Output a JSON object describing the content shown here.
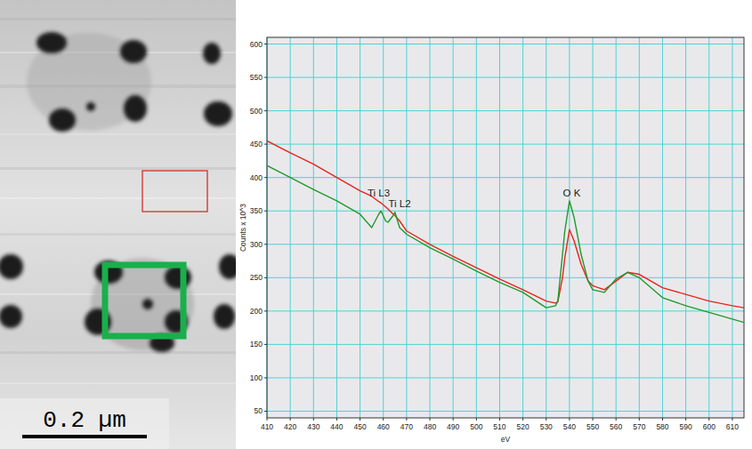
{
  "chart_data": {
    "type": "line",
    "x_label": "eV",
    "y_label": "Counts x 10^3",
    "x": [
      410,
      420,
      430,
      440,
      450,
      455,
      458,
      459,
      461,
      462,
      464,
      465,
      467,
      470,
      480,
      490,
      500,
      510,
      520,
      530,
      534,
      535,
      537,
      538,
      540,
      542,
      545,
      548,
      550,
      555,
      560,
      565,
      570,
      575,
      580,
      590,
      600,
      610,
      615
    ],
    "series": [
      {
        "color": "#e8231c",
        "values": [
          455,
          437,
          420,
          400,
          380,
          372,
          364,
          362,
          356,
          353,
          346,
          343,
          335,
          320,
          300,
          282,
          265,
          248,
          232,
          215,
          212,
          214,
          250,
          280,
          322,
          305,
          270,
          245,
          238,
          232,
          245,
          258,
          255,
          245,
          235,
          225,
          215,
          208,
          205
        ]
      },
      {
        "color": "#1f9a2a",
        "values": [
          418,
          400,
          382,
          365,
          345,
          325,
          345,
          350,
          335,
          333,
          342,
          348,
          325,
          315,
          295,
          278,
          260,
          243,
          228,
          205,
          208,
          215,
          285,
          320,
          365,
          340,
          285,
          245,
          232,
          228,
          248,
          258,
          250,
          235,
          220,
          208,
          198,
          188,
          183
        ]
      }
    ],
    "annotations": [
      {
        "text": "Ti L3",
        "x": 458,
        "y": 372
      },
      {
        "text": "Ti L2",
        "x": 467,
        "y": 356
      },
      {
        "text": "O K",
        "x": 541,
        "y": 372
      }
    ],
    "xlim": [
      410,
      615
    ],
    "xticks": [
      410,
      420,
      430,
      440,
      450,
      460,
      470,
      480,
      490,
      500,
      510,
      520,
      530,
      540,
      550,
      560,
      570,
      580,
      590,
      600,
      610
    ],
    "ylim": [
      40,
      610
    ],
    "yticks": [
      50,
      100,
      150,
      200,
      250,
      300,
      350,
      400,
      450,
      500,
      550,
      600
    ],
    "grid": true
  },
  "image": {
    "scale_bar_label": "0.2 µm"
  }
}
